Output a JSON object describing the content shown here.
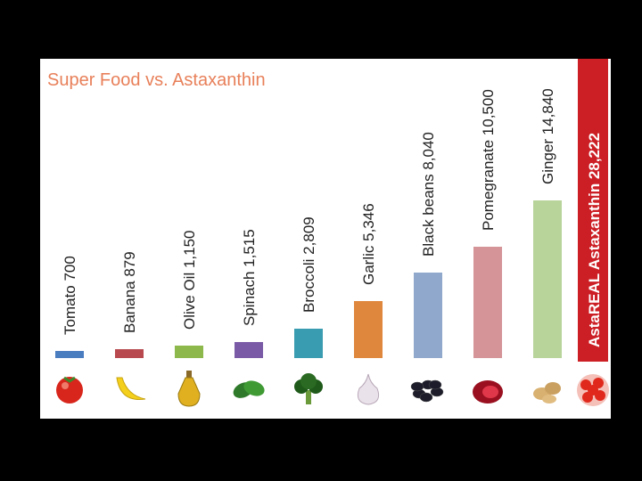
{
  "chart_data": {
    "type": "bar",
    "title": "Super Food vs. Astaxanthin",
    "categories": [
      "Tomato",
      "Banana",
      "Olive Oil",
      "Spinach",
      "Broccoli",
      "Garlic",
      "Black beans",
      "Pomegranate",
      "Ginger",
      "AstaREAL Astaxanthin"
    ],
    "bar_labels": [
      "Tomato 700",
      "Banana 879",
      "Olive Oil   1,150",
      "Spinach   1,515",
      "Broccoli 2,809",
      "Garlic   5,346",
      "Black beans   8,040",
      "Pomegranate 10,500",
      "Ginger   14,840",
      "AstaREAL Astaxanthin 28,222"
    ],
    "values": [
      700,
      879,
      1150,
      1515,
      2809,
      5346,
      8040,
      10500,
      14840,
      28222
    ],
    "colors": [
      "#4a7cc0",
      "#b84a4f",
      "#8db84c",
      "#7a5aa6",
      "#3a9cb0",
      "#e0873e",
      "#90a8cc",
      "#d49498",
      "#b8d49a",
      "#cc1f25"
    ],
    "icons": [
      "tomato-icon",
      "banana-icon",
      "olive-oil-icon",
      "spinach-icon",
      "broccoli-icon",
      "garlic-icon",
      "black-beans-icon",
      "pomegranate-icon",
      "ginger-icon",
      "astaxanthin-icon"
    ],
    "ylim": [
      0,
      28222
    ],
    "grid": false,
    "legend": "none"
  }
}
